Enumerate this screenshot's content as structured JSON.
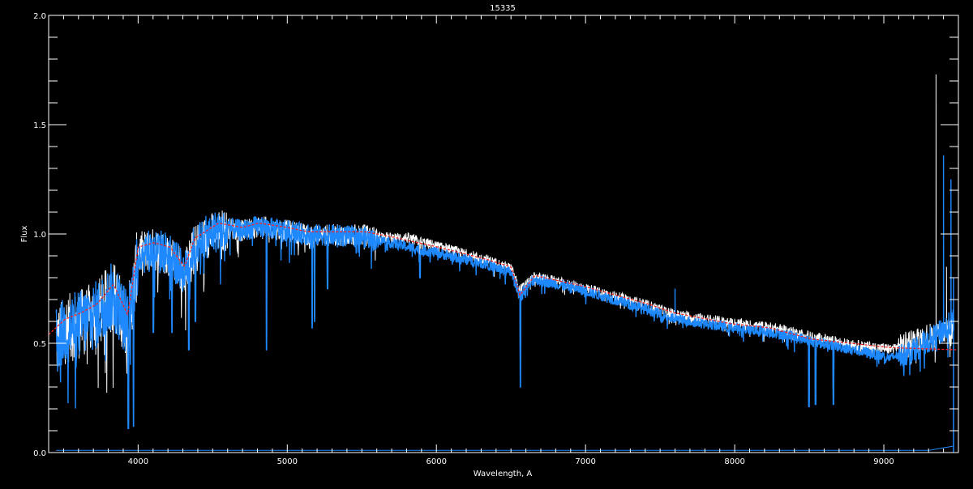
{
  "chart_data": {
    "type": "line",
    "title": "15335",
    "xlabel": "Wavelength, A",
    "ylabel": "Flux",
    "xlim": [
      3400,
      9500
    ],
    "ylim": [
      0.0,
      2.0
    ],
    "xticks": [
      4000,
      5000,
      6000,
      7000,
      8000,
      9000
    ],
    "xtick_labels": [
      "4000",
      "5000",
      "6000",
      "7000",
      "8000",
      "9000"
    ],
    "yticks": [
      0.0,
      0.5,
      1.0,
      1.5,
      2.0
    ],
    "ytick_labels": [
      "0.0",
      "0.5",
      "1.0",
      "1.5",
      "2.0"
    ],
    "x_minor_step": 100,
    "y_minor_step": 0.1,
    "grid": false,
    "background": "#000000",
    "axis_color": "#ffffff",
    "series": [
      {
        "color": "#ffffff",
        "range": [
          3450,
          9470
        ],
        "x": [
          3450,
          3510,
          3620,
          3725,
          3835,
          3930,
          4000,
          4105,
          4215,
          4310,
          4380,
          4540,
          4700,
          4810,
          5000,
          5140,
          5250,
          5520,
          5680,
          5800,
          6010,
          6330,
          6500,
          6560,
          6660,
          6990,
          7420,
          7590,
          7970,
          8240,
          8510,
          8780,
          9050,
          9200,
          9350,
          9470
        ],
        "y": [
          0.55,
          0.61,
          0.64,
          0.68,
          0.77,
          0.63,
          0.94,
          0.96,
          0.94,
          0.85,
          0.98,
          1.05,
          1.03,
          1.05,
          1.03,
          1.01,
          1.01,
          1.01,
          0.99,
          0.99,
          0.95,
          0.89,
          0.85,
          0.75,
          0.81,
          0.76,
          0.68,
          0.64,
          0.6,
          0.58,
          0.54,
          0.5,
          0.48,
          0.53,
          0.56,
          0.58
        ],
        "spikes": [
          [
            9350,
            1.73
          ],
          [
            9420,
            0.85
          ]
        ]
      },
      {
        "color": "#1e88ff",
        "range": [
          3450,
          9470
        ],
        "x": [
          3450,
          3510,
          3620,
          3725,
          3835,
          3930,
          4000,
          4105,
          4215,
          4310,
          4380,
          4540,
          4700,
          4810,
          5000,
          5140,
          5250,
          5520,
          5680,
          5800,
          6010,
          6330,
          6500,
          6560,
          6660,
          6990,
          7420,
          7590,
          7970,
          8240,
          8510,
          8780,
          9050,
          9200,
          9350,
          9470
        ],
        "y": [
          0.55,
          0.61,
          0.64,
          0.68,
          0.77,
          0.63,
          0.94,
          0.96,
          0.94,
          0.85,
          0.98,
          1.05,
          1.03,
          1.05,
          1.03,
          1.01,
          1.01,
          1.0,
          0.97,
          0.95,
          0.92,
          0.87,
          0.83,
          0.73,
          0.8,
          0.75,
          0.66,
          0.62,
          0.58,
          0.56,
          0.52,
          0.48,
          0.44,
          0.49,
          0.55,
          0.62
        ],
        "spikes": [
          [
            9400,
            1.36
          ],
          [
            9450,
            1.25
          ],
          [
            7600,
            0.75
          ]
        ]
      },
      {
        "color": "#ff2020",
        "dashed": true,
        "x": [
          3400,
          3510,
          3620,
          3725,
          3835,
          3930,
          4000,
          4105,
          4215,
          4310,
          4380,
          4540,
          4700,
          4810,
          5000,
          5140,
          5250,
          5520,
          5680,
          6010,
          6330,
          6500,
          6560,
          6660,
          6990,
          7420,
          7590,
          7970,
          8240,
          8510,
          8780,
          9050,
          9500
        ],
        "y": [
          0.54,
          0.61,
          0.64,
          0.68,
          0.77,
          0.63,
          0.94,
          0.96,
          0.94,
          0.85,
          0.98,
          1.05,
          1.03,
          1.05,
          1.03,
          1.01,
          1.01,
          1.01,
          0.99,
          0.94,
          0.885,
          0.85,
          0.72,
          0.81,
          0.76,
          0.68,
          0.64,
          0.59,
          0.57,
          0.52,
          0.5,
          0.48,
          0.47
        ]
      },
      {
        "color": "#1e88ff",
        "range": [
          3450,
          9470
        ],
        "x": [
          3450,
          9300,
          9470
        ],
        "y": [
          0.01,
          0.01,
          0.03
        ]
      }
    ],
    "absorption_lines": [
      [
        3934,
        0.11
      ],
      [
        3969,
        0.12
      ],
      [
        4102,
        0.55
      ],
      [
        4227,
        0.55
      ],
      [
        4340,
        0.47
      ],
      [
        4384,
        0.6
      ],
      [
        4861,
        0.47
      ],
      [
        5167,
        0.57
      ],
      [
        5183,
        0.6
      ],
      [
        5270,
        0.75
      ],
      [
        5890,
        0.8
      ],
      [
        6563,
        0.3
      ],
      [
        8498,
        0.21
      ],
      [
        8542,
        0.22
      ],
      [
        8662,
        0.22
      ],
      [
        7000,
        0.78
      ],
      [
        6870,
        0.75
      ]
    ]
  }
}
